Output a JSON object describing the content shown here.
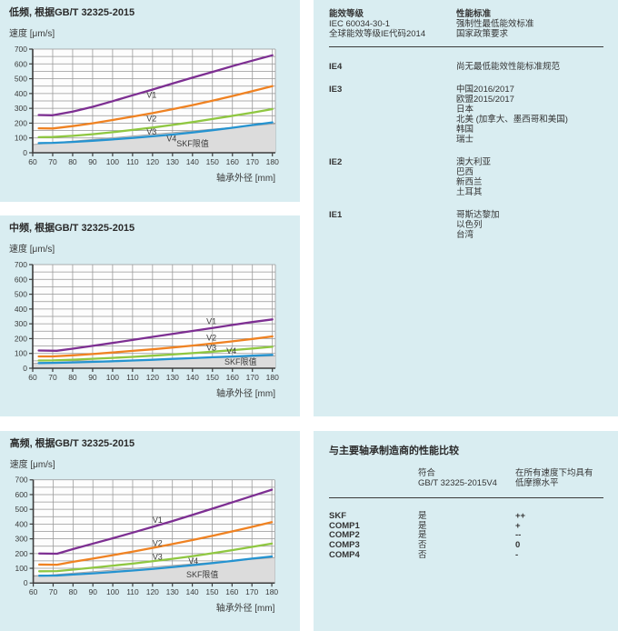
{
  "colors": {
    "panel_bg": "#d9edf1",
    "plot_bg": "#fdfdfd",
    "grid": "#969696",
    "axis": "#3c3c3c",
    "v1": "#7d2f92",
    "v2": "#ef8222",
    "v3": "#8fc741",
    "v4": "#2593d0",
    "limit_fill": "#dcdcdc",
    "limit_line": "#a6a6a6",
    "text": "#333333"
  },
  "chart_data": [
    {
      "type": "line",
      "title": "低频, 根据GB/T 32325-2015",
      "ylabel": "速度 [μm/s]",
      "xlabel": "轴承外径 [mm]",
      "xlim": [
        60,
        181.5
      ],
      "ylim": [
        0,
        700
      ],
      "xticks": [
        60,
        70,
        80,
        90,
        100,
        110,
        120,
        130,
        140,
        150,
        160,
        170,
        180
      ],
      "yticks": [
        0,
        100,
        200,
        300,
        400,
        500,
        600,
        700
      ],
      "grid_step_y": 50,
      "grid": "on",
      "legend_position": "inline-labels",
      "series": [
        {
          "name": "V1",
          "color": "#7d2f92",
          "label_pos": [
            117,
            372
          ],
          "points": [
            [
              63,
              255
            ],
            [
              70,
              253
            ],
            [
              80,
              278
            ],
            [
              90,
              310
            ],
            [
              100,
              348
            ],
            [
              110,
              388
            ],
            [
              120,
              427
            ],
            [
              130,
              467
            ],
            [
              140,
              507
            ],
            [
              150,
              546
            ],
            [
              160,
              585
            ],
            [
              170,
              622
            ],
            [
              180,
              658
            ]
          ]
        },
        {
          "name": "V2",
          "color": "#ef8222",
          "label_pos": [
            117,
            212
          ],
          "points": [
            [
              63,
              165
            ],
            [
              70,
              164
            ],
            [
              80,
              180
            ],
            [
              90,
              199
            ],
            [
              100,
              221
            ],
            [
              110,
              244
            ],
            [
              120,
              268
            ],
            [
              130,
              294
            ],
            [
              140,
              322
            ],
            [
              150,
              352
            ],
            [
              160,
              383
            ],
            [
              170,
              416
            ],
            [
              180,
              450
            ]
          ]
        },
        {
          "name": "V3",
          "color": "#8fc741",
          "label_pos": [
            117,
            122
          ],
          "points": [
            [
              63,
              105
            ],
            [
              70,
              106
            ],
            [
              80,
              114
            ],
            [
              90,
              125
            ],
            [
              100,
              139
            ],
            [
              110,
              154
            ],
            [
              120,
              170
            ],
            [
              130,
              188
            ],
            [
              140,
              207
            ],
            [
              150,
              228
            ],
            [
              160,
              249
            ],
            [
              170,
              271
            ],
            [
              180,
              295
            ]
          ]
        },
        {
          "name": "V4",
          "color": "#2593d0",
          "label_pos": [
            127,
            78
          ],
          "points": [
            [
              63,
              65
            ],
            [
              70,
              67
            ],
            [
              80,
              73
            ],
            [
              90,
              81
            ],
            [
              100,
              90
            ],
            [
              110,
              100
            ],
            [
              120,
              111
            ],
            [
              130,
              123
            ],
            [
              140,
              137
            ],
            [
              150,
              152
            ],
            [
              160,
              169
            ],
            [
              170,
              187
            ],
            [
              180,
              205
            ]
          ]
        }
      ],
      "limit_region": {
        "label": "SKF限值",
        "label_pos": [
          132,
          42
        ],
        "points": [
          [
            60,
            55
          ],
          [
            181.5,
            196
          ]
        ]
      }
    },
    {
      "type": "line",
      "title": "中频, 根据GB/T 32325-2015",
      "ylabel": "速度 [μm/s]",
      "xlabel": "轴承外径 [mm]",
      "xlim": [
        60,
        181.5
      ],
      "ylim": [
        0,
        700
      ],
      "xticks": [
        60,
        70,
        80,
        90,
        100,
        110,
        120,
        130,
        140,
        150,
        160,
        170,
        180
      ],
      "yticks": [
        0,
        100,
        200,
        300,
        400,
        500,
        600,
        700
      ],
      "grid_step_y": 50,
      "grid": "on",
      "legend_position": "inline-labels",
      "series": [
        {
          "name": "V1",
          "color": "#7d2f92",
          "label_pos": [
            147,
            297
          ],
          "points": [
            [
              63,
              120
            ],
            [
              72,
              118
            ],
            [
              80,
              132
            ],
            [
              90,
              151
            ],
            [
              100,
              171
            ],
            [
              110,
              191
            ],
            [
              120,
              212
            ],
            [
              130,
              232
            ],
            [
              140,
              252
            ],
            [
              150,
              272
            ],
            [
              160,
              292
            ],
            [
              170,
              312
            ],
            [
              180,
              330
            ]
          ]
        },
        {
          "name": "V2",
          "color": "#ef8222",
          "label_pos": [
            147,
            187
          ],
          "points": [
            [
              63,
              80
            ],
            [
              70,
              80
            ],
            [
              80,
              87
            ],
            [
              90,
              96
            ],
            [
              100,
              106
            ],
            [
              110,
              117
            ],
            [
              120,
              128
            ],
            [
              130,
              140
            ],
            [
              140,
              153
            ],
            [
              150,
              167
            ],
            [
              160,
              182
            ],
            [
              170,
              198
            ],
            [
              180,
              215
            ]
          ]
        },
        {
          "name": "V3",
          "color": "#8fc741",
          "label_pos": [
            147,
            120
          ],
          "points": [
            [
              63,
              52
            ],
            [
              70,
              53
            ],
            [
              80,
              58
            ],
            [
              90,
              64
            ],
            [
              100,
              70
            ],
            [
              110,
              77
            ],
            [
              120,
              85
            ],
            [
              130,
              93
            ],
            [
              140,
              102
            ],
            [
              150,
              112
            ],
            [
              160,
              122
            ],
            [
              170,
              133
            ],
            [
              180,
              145
            ]
          ]
        },
        {
          "name": "V4",
          "color": "#2593d0",
          "label_pos": [
            157,
            97
          ],
          "points": [
            [
              63,
              35
            ],
            [
              70,
              36
            ],
            [
              80,
              39
            ],
            [
              90,
              43
            ],
            [
              100,
              47
            ],
            [
              110,
              52
            ],
            [
              120,
              57
            ],
            [
              130,
              63
            ],
            [
              140,
              68
            ],
            [
              150,
              74
            ],
            [
              160,
              79
            ],
            [
              170,
              85
            ],
            [
              180,
              90
            ]
          ]
        }
      ],
      "limit_region": {
        "label": "SKF限值",
        "label_pos": [
          156,
          25
        ],
        "points": [
          [
            60,
            32
          ],
          [
            181.5,
            84
          ]
        ]
      }
    },
    {
      "type": "line",
      "title": "高频, 根据GB/T 32325-2015",
      "ylabel": "速度 [μm/s]",
      "xlabel": "轴承外径 [mm]",
      "xlim": [
        60,
        181.5
      ],
      "ylim": [
        0,
        700
      ],
      "xticks": [
        60,
        70,
        80,
        90,
        100,
        110,
        120,
        130,
        140,
        150,
        160,
        170,
        180
      ],
      "yticks": [
        0,
        100,
        200,
        300,
        400,
        500,
        600,
        700
      ],
      "grid_step_y": 50,
      "grid": "on",
      "legend_position": "inline-labels",
      "series": [
        {
          "name": "V1",
          "color": "#7d2f92",
          "label_pos": [
            120,
            408
          ],
          "points": [
            [
              63,
              200
            ],
            [
              72,
              199
            ],
            [
              80,
              230
            ],
            [
              90,
              267
            ],
            [
              100,
              304
            ],
            [
              110,
              342
            ],
            [
              120,
              381
            ],
            [
              130,
              420
            ],
            [
              140,
              462
            ],
            [
              150,
              504
            ],
            [
              160,
              547
            ],
            [
              170,
              590
            ],
            [
              180,
              633
            ]
          ]
        },
        {
          "name": "V2",
          "color": "#ef8222",
          "label_pos": [
            120,
            252
          ],
          "points": [
            [
              63,
              125
            ],
            [
              72,
              124
            ],
            [
              80,
              144
            ],
            [
              90,
              166
            ],
            [
              100,
              189
            ],
            [
              110,
              213
            ],
            [
              120,
              238
            ],
            [
              130,
              264
            ],
            [
              140,
              291
            ],
            [
              150,
              320
            ],
            [
              160,
              350
            ],
            [
              170,
              381
            ],
            [
              180,
              413
            ]
          ]
        },
        {
          "name": "V3",
          "color": "#8fc741",
          "label_pos": [
            120,
            158
          ],
          "points": [
            [
              63,
              80
            ],
            [
              72,
              81
            ],
            [
              80,
              91
            ],
            [
              90,
              104
            ],
            [
              100,
              118
            ],
            [
              110,
              132
            ],
            [
              120,
              148
            ],
            [
              130,
              164
            ],
            [
              140,
              182
            ],
            [
              150,
              202
            ],
            [
              160,
              223
            ],
            [
              170,
              245
            ],
            [
              180,
              268
            ]
          ]
        },
        {
          "name": "V4",
          "color": "#2593d0",
          "label_pos": [
            138,
            130
          ],
          "points": [
            [
              63,
              50
            ],
            [
              72,
              51
            ],
            [
              80,
              58
            ],
            [
              90,
              66
            ],
            [
              100,
              75
            ],
            [
              110,
              85
            ],
            [
              120,
              96
            ],
            [
              130,
              108
            ],
            [
              140,
              121
            ],
            [
              150,
              135
            ],
            [
              160,
              150
            ],
            [
              170,
              166
            ],
            [
              180,
              180
            ]
          ]
        }
      ],
      "limit_region": {
        "label": "SKF限值",
        "label_pos": [
          137,
          38
        ],
        "points": [
          [
            60,
            46
          ],
          [
            181.5,
            173
          ]
        ]
      }
    }
  ],
  "energy_table": {
    "header": {
      "col1": [
        "能效等级",
        "IEC 60034-30-1",
        "全球能效等级IE代码2014"
      ],
      "col2": [
        "性能标准",
        "强制性最低能效标准",
        "国家政策要求"
      ]
    },
    "rows": [
      {
        "level": "IE4",
        "items": [
          "尚无最低能效性能标准规范"
        ]
      },
      {
        "level": "IE3",
        "items": [
          "中国2016/2017",
          "欧盟2015/2017",
          "日本",
          "北美 (加拿大、墨西哥和美国)",
          "韩国",
          "瑞士"
        ]
      },
      {
        "level": "IE2",
        "items": [
          "澳大利亚",
          "巴西",
          "新西兰",
          "土耳其"
        ]
      },
      {
        "level": "IE1",
        "items": [
          "哥斯达黎加",
          "以色列",
          "台湾"
        ]
      }
    ]
  },
  "comparison_table": {
    "title": "与主要轴承制造商的性能比较",
    "col_headers": [
      [
        "符合",
        "GB/T 32325-2015V4"
      ],
      [
        "在所有速度下均具有",
        "低摩擦水平"
      ]
    ],
    "rows": [
      {
        "name": "SKF",
        "compliant": "是",
        "friction": "++"
      },
      {
        "name": "COMP1",
        "compliant": "是",
        "friction": "+"
      },
      {
        "name": "COMP2",
        "compliant": "是",
        "friction": "--"
      },
      {
        "name": "COMP3",
        "compliant": "否",
        "friction": "0"
      },
      {
        "name": "COMP4",
        "compliant": "否",
        "friction": "-"
      }
    ]
  }
}
